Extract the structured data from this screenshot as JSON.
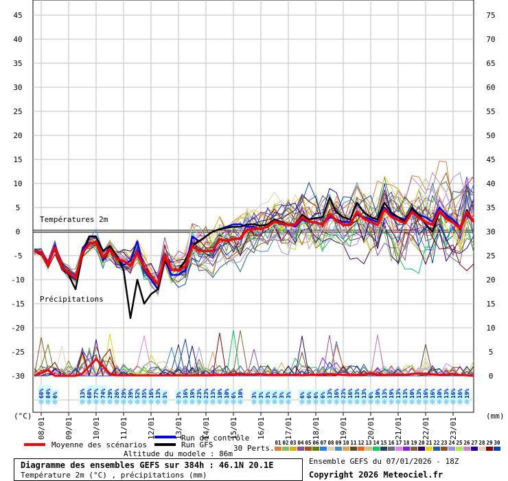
{
  "chart_data": {
    "type": "line",
    "title": "Diagramme des ensembles GEFS sur 384h : 46.1N 20.1E",
    "subtitle": "Température 2m (°C) , précipitations (mm)",
    "run_info": "Ensemble GEFS du 07/01/2026 - 18Z",
    "copyright": "Copyright 2026 Meteociel.fr",
    "altitude": "Altitude du modele : 86m",
    "temp_section_label": "Températures 2m",
    "precip_section_label": "Précipitations",
    "left_unit": "(°C)",
    "right_unit": "(mm)",
    "time_step_hours": 6,
    "left_axis": {
      "ticks": [
        "45",
        "40",
        "35",
        "30",
        "25",
        "20",
        "15",
        "10",
        "5",
        "0",
        "-5",
        "-10",
        "-15",
        "-20",
        "-25",
        "-30"
      ],
      "ylim": [
        -35,
        48
      ]
    },
    "right_axis": {
      "ticks": [
        "75",
        "70",
        "65",
        "60",
        "55",
        "50",
        "45",
        "40",
        "35",
        "30",
        "25",
        "20",
        "15",
        "10",
        "5",
        "0"
      ]
    },
    "x_tick_labels": [
      "08/01",
      "09/01",
      "10/01",
      "11/01",
      "12/01",
      "13/01",
      "14/01",
      "15/01",
      "16/01",
      "17/01",
      "18/01",
      "19/01",
      "20/01",
      "21/01",
      "22/01",
      "23/01"
    ],
    "series": [
      {
        "name": "Moyenne des scénarios",
        "color": "#ff0000",
        "temp": [
          -4.1,
          -4.3,
          -6.9,
          -3.3,
          -7.3,
          -8.6,
          -9.7,
          -4.4,
          -2.6,
          -2.1,
          -5.4,
          -3.7,
          -5.7,
          -6.1,
          -7.1,
          -4.4,
          -7.6,
          -9.4,
          -10.9,
          -5,
          -8,
          -8,
          -7.3,
          -3,
          -4,
          -4,
          -4,
          -1.6,
          -1.9,
          -1.6,
          -1.4,
          0.3,
          0.6,
          0.6,
          1,
          2.1,
          1.7,
          1.4,
          1.4,
          2.9,
          2.1,
          1.9,
          1.4,
          3.6,
          2.3,
          1.4,
          1.4,
          4.1,
          2.7,
          2,
          1.4,
          4.6,
          3.1,
          2.4,
          1.7,
          4.1,
          2.9,
          2,
          1.4,
          4.3,
          2.7,
          1.9,
          0.7,
          4.1,
          2
        ],
        "precip": [
          0,
          0.6,
          1.2,
          0,
          0,
          0,
          0,
          0.5,
          2,
          3.5,
          2,
          0.5,
          0.1,
          0.1,
          0.1,
          0.1,
          0.1,
          0.1,
          0.1,
          0.1,
          0.1,
          0.1,
          0.1,
          0.1,
          0.1,
          0.1,
          0.1,
          0.2,
          0.2,
          0.3,
          0.4,
          0.3,
          0.3,
          0.4,
          0.2,
          0.2,
          0.2,
          0.2,
          0.2,
          0.1,
          0.2,
          0.2,
          0.3,
          0.4,
          0.3,
          0.2,
          0.1,
          0.2,
          0.3,
          0.5,
          0.3,
          0.2,
          0.2,
          0.3,
          0.2,
          0.4,
          0.5,
          0.4,
          0.3,
          0.2,
          0.3,
          0.4,
          0.2,
          0.1,
          0
        ]
      },
      {
        "name": "Run de contrôle",
        "color": "#0000ff",
        "temp": [
          -4,
          -4.5,
          -7,
          -3,
          -7,
          -9,
          -10,
          -4,
          -1,
          -1,
          -6,
          -3,
          -5,
          -7,
          -6,
          -2,
          -8,
          -10,
          -12,
          -6,
          -9,
          -9,
          -8,
          -1,
          -2,
          -1,
          0,
          0.5,
          1,
          1.5,
          1.5,
          1,
          1,
          0.5,
          1,
          2,
          1.5,
          1.5,
          1,
          2.5,
          2,
          2,
          1.5,
          3,
          2.5,
          2,
          2,
          3.5,
          3,
          2.5,
          2,
          5,
          3.5,
          3,
          2.5,
          4.5,
          3.5,
          3,
          2,
          5,
          3.5,
          2.5,
          1,
          3.5,
          2
        ]
      },
      {
        "name": "Run GFS",
        "color": "#000000",
        "temp": [
          -4.1,
          -4.3,
          -7,
          -3.3,
          -7.5,
          -9,
          -12,
          -5,
          -1,
          -1,
          -4,
          -3,
          -5,
          -8,
          -18,
          -10,
          -15,
          -13,
          -12,
          -6,
          -8,
          -8,
          -6,
          -3,
          -2,
          -1,
          0,
          0.5,
          0.8,
          1,
          1,
          1.5,
          1.5,
          1.2,
          1.5,
          2.5,
          2,
          1.5,
          1.5,
          3.5,
          2.5,
          2.8,
          3,
          7,
          4,
          3,
          2.5,
          6,
          4,
          3,
          2.5,
          6,
          4,
          3,
          2,
          5,
          3.5,
          1.5,
          0,
          4,
          3,
          2,
          0.5,
          4.5,
          2
        ]
      }
    ],
    "precip_probability_pct": [
      null,
      "68%",
      "84%",
      "6%",
      null,
      null,
      null,
      "13%",
      "68%",
      "77%",
      "74%",
      "29%",
      "26%",
      "29%",
      "39%",
      "52%",
      "35%",
      "16%",
      "13%",
      "3%",
      null,
      "3%",
      "16%",
      "19%",
      "23%",
      "23%",
      "13%",
      "10%",
      "10%",
      "6%",
      "10%",
      null,
      "3%",
      "3%",
      "3%",
      "3%",
      "3%",
      "3%",
      null,
      "6%",
      "6%",
      "6%",
      "6%",
      "13%",
      "16%",
      "23%",
      "16%",
      "13%",
      "13%",
      "6%",
      "10%",
      "13%",
      "19%",
      "13%",
      "13%",
      "10%",
      "13%",
      "16%",
      "16%",
      "10%",
      "13%",
      "16%",
      "16%",
      "19%",
      null
    ],
    "legend": {
      "mean": "Moyenne des scénarios",
      "control": "Run de contrôle",
      "gfs": "Run GFS",
      "perts_label": "30 Perts.",
      "perts": [
        {
          "id": "01",
          "color": "#e07f30"
        },
        {
          "id": "02",
          "color": "#80c060"
        },
        {
          "id": "03",
          "color": "#e0b000"
        },
        {
          "id": "04",
          "color": "#9050a0"
        },
        {
          "id": "05",
          "color": "#b05010"
        },
        {
          "id": "06",
          "color": "#608000"
        },
        {
          "id": "07",
          "color": "#2080f0"
        },
        {
          "id": "08",
          "color": "#e0d0b0"
        },
        {
          "id": "09",
          "color": "#4090c0"
        },
        {
          "id": "10",
          "color": "#e0a050"
        },
        {
          "id": "11",
          "color": "#604820"
        },
        {
          "id": "12",
          "color": "#f06020"
        },
        {
          "id": "13",
          "color": "#d0c080"
        },
        {
          "id": "14",
          "color": "#00d060"
        },
        {
          "id": "15",
          "color": "#204060"
        },
        {
          "id": "16",
          "color": "#607080"
        },
        {
          "id": "17",
          "color": "#e080f0"
        },
        {
          "id": "18",
          "color": "#8020f0"
        },
        {
          "id": "19",
          "color": "#806030"
        },
        {
          "id": "20",
          "color": "#300070"
        },
        {
          "id": "21",
          "color": "#f0d000"
        },
        {
          "id": "22",
          "color": "#2060a0"
        },
        {
          "id": "23",
          "color": "#905020"
        },
        {
          "id": "24",
          "color": "#a090f0"
        },
        {
          "id": "25",
          "color": "#a0f040"
        },
        {
          "id": "26",
          "color": "#d080d0"
        },
        {
          "id": "27",
          "color": "#2000a0"
        },
        {
          "id": "28",
          "color": "#e0d0b0"
        },
        {
          "id": "29",
          "color": "#800000"
        },
        {
          "id": "30",
          "color": "#0040c0"
        }
      ]
    }
  }
}
